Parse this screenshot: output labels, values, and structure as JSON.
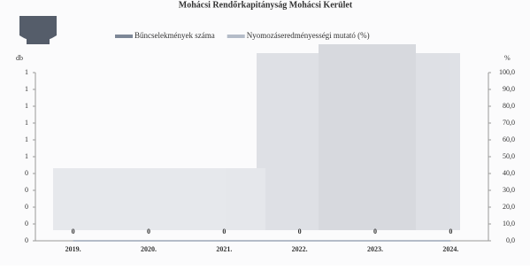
{
  "chart_data": {
    "type": "bar",
    "title": "Mohácsi Rendőrkapitányság Mohácsi Kerület",
    "y_label": "db",
    "y2_label": "%",
    "categories": [
      "2019.",
      "2020.",
      "2021.",
      "2022.",
      "2023.",
      "2024."
    ],
    "series": [
      {
        "name": "Bűncselekmények száma",
        "color": "#7d8797",
        "values": [
          0,
          0,
          0,
          0,
          0,
          0
        ]
      },
      {
        "name": "Nyomozáseredményességi mutató (%)",
        "color": "#b4bcc8",
        "values": [
          0,
          0,
          0,
          0,
          0,
          0
        ],
        "axis": "y2",
        "type": "line"
      }
    ],
    "ylim": [
      0,
      1
    ],
    "yticks": [
      {
        "value": 0,
        "label": "0"
      },
      {
        "value": 0.1,
        "label": "0"
      },
      {
        "value": 0.2,
        "label": "0"
      },
      {
        "value": 0.3,
        "label": "0"
      },
      {
        "value": 0.4,
        "label": "0"
      },
      {
        "value": 0.5,
        "label": "1"
      },
      {
        "value": 0.6,
        "label": "1"
      },
      {
        "value": 0.7,
        "label": "1"
      },
      {
        "value": 0.8,
        "label": "1"
      },
      {
        "value": 0.9,
        "label": "1"
      },
      {
        "value": 1,
        "label": "1"
      }
    ],
    "y2lim": [
      0,
      100
    ],
    "y2ticks": [
      {
        "value": 0,
        "label": "0,0"
      },
      {
        "value": 10,
        "label": "10,0"
      },
      {
        "value": 20,
        "label": "20,0"
      },
      {
        "value": 30,
        "label": "30,0"
      },
      {
        "value": 40,
        "label": "40,0"
      },
      {
        "value": 50,
        "label": "50,0"
      },
      {
        "value": 60,
        "label": "60,0"
      },
      {
        "value": 70,
        "label": "70,0"
      },
      {
        "value": 80,
        "label": "80,0"
      },
      {
        "value": 90,
        "label": "90,0"
      },
      {
        "value": 100,
        "label": "100,0"
      }
    ]
  }
}
